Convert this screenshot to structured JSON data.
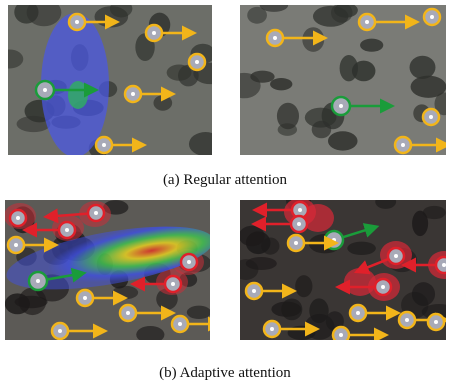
{
  "figure": {
    "subfigures": [
      {
        "caption": "(a) Regular attention"
      },
      {
        "caption": "(b) Adaptive attention"
      }
    ]
  }
}
